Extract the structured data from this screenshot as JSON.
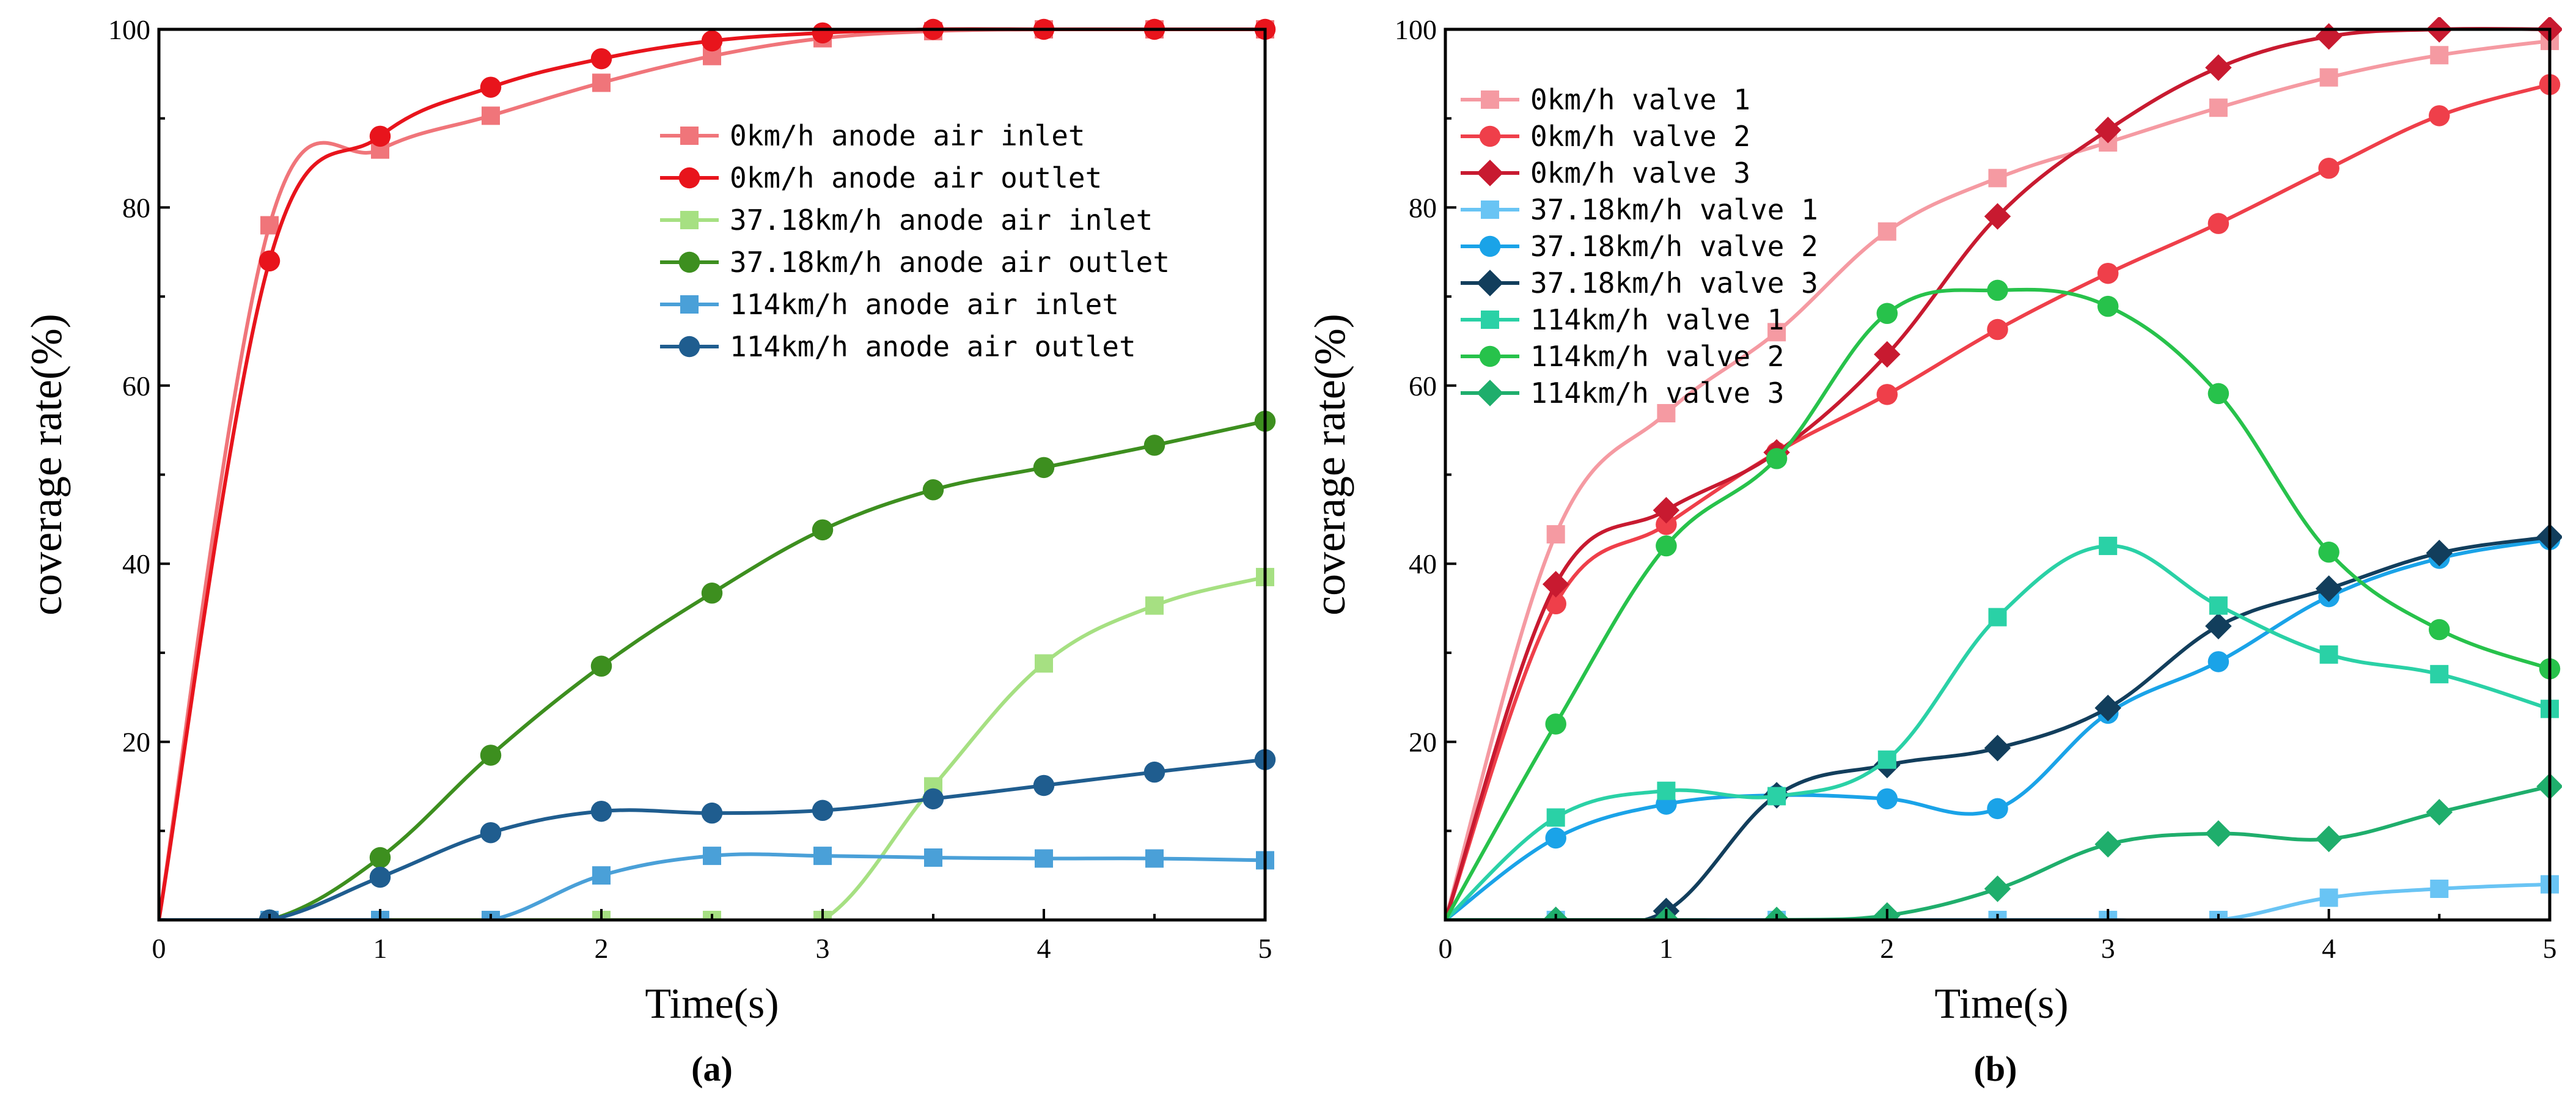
{
  "chart_data": [
    {
      "type": "line",
      "panel_label": "(a)",
      "xlabel": "Time(s)",
      "ylabel": "coverage rate(%)",
      "xlim": [
        0,
        5
      ],
      "ylim": [
        0,
        100
      ],
      "xticks": [
        "0",
        "1",
        "2",
        "3",
        "4",
        "5"
      ],
      "yticks": [
        "20",
        "40",
        "60",
        "80",
        "100"
      ],
      "legend_position": "top-right",
      "series": [
        {
          "name": "0km/h anode air inlet",
          "color": "#f0757a",
          "marker": "square",
          "x": [
            0,
            0.5,
            1,
            1.5,
            2,
            2.5,
            3,
            3.5,
            4,
            4.5,
            5
          ],
          "y": [
            0,
            78,
            86.5,
            90.3,
            94,
            97,
            99,
            99.8,
            100,
            100,
            100
          ]
        },
        {
          "name": "0km/h anode air outlet",
          "color": "#e8141c",
          "marker": "circle",
          "x": [
            0,
            0.5,
            1,
            1.5,
            2,
            2.5,
            3,
            3.5,
            4,
            4.5,
            5
          ],
          "y": [
            0,
            74,
            88,
            93.5,
            96.7,
            98.7,
            99.6,
            100,
            100,
            100,
            100
          ]
        },
        {
          "name": "37.18km/h anode air inlet",
          "color": "#a6e082",
          "marker": "square",
          "x": [
            0,
            0.5,
            1,
            1.5,
            2,
            2.5,
            3,
            3.5,
            4,
            4.5,
            5
          ],
          "y": [
            0,
            0,
            0,
            0,
            0,
            0,
            0,
            15,
            28.8,
            35.3,
            38.5
          ]
        },
        {
          "name": "37.18km/h anode air outlet",
          "color": "#3d8f1f",
          "marker": "circle",
          "x": [
            0,
            0.5,
            1,
            1.5,
            2,
            2.5,
            3,
            3.5,
            4,
            4.5,
            5
          ],
          "y": [
            0,
            0,
            7,
            18.5,
            28.5,
            36.7,
            43.8,
            48.3,
            50.8,
            53.3,
            56
          ]
        },
        {
          "name": "114km/h anode air inlet",
          "color": "#4aa0d8",
          "marker": "square",
          "x": [
            0,
            0.5,
            1,
            1.5,
            2,
            2.5,
            3,
            3.5,
            4,
            4.5,
            5
          ],
          "y": [
            0,
            0,
            0,
            0,
            5,
            7.2,
            7.2,
            7,
            6.9,
            6.9,
            6.7
          ]
        },
        {
          "name": "114km/h anode air outlet",
          "color": "#1f5d8f",
          "marker": "circle",
          "x": [
            0,
            0.5,
            1,
            1.5,
            2,
            2.5,
            3,
            3.5,
            4,
            4.5,
            5
          ],
          "y": [
            0,
            0,
            4.8,
            9.8,
            12.2,
            12,
            12.3,
            13.6,
            15.1,
            16.6,
            18
          ]
        }
      ]
    },
    {
      "type": "line",
      "panel_label": "(b)",
      "xlabel": "Time(s)",
      "ylabel": "coverage rate(%)",
      "xlim": [
        0,
        5
      ],
      "ylim": [
        0,
        100
      ],
      "xticks": [
        "0",
        "1",
        "2",
        "3",
        "4",
        "5"
      ],
      "yticks": [
        "20",
        "40",
        "60",
        "80",
        "100"
      ],
      "legend_position": "top-left",
      "series": [
        {
          "name": "0km/h valve 1",
          "color": "#f59aa2",
          "marker": "square",
          "x": [
            0,
            0.5,
            1,
            1.5,
            2,
            2.5,
            3,
            3.5,
            4,
            4.5,
            5
          ],
          "y": [
            0,
            43.3,
            56.9,
            66,
            77.3,
            83.3,
            87.3,
            91.2,
            94.6,
            97.1,
            98.7
          ]
        },
        {
          "name": "0km/h valve 2",
          "color": "#ef3f4a",
          "marker": "circle",
          "x": [
            0,
            0.5,
            1,
            1.5,
            2,
            2.5,
            3,
            3.5,
            4,
            4.5,
            5
          ],
          "y": [
            0,
            35.5,
            44.4,
            52.5,
            59,
            66.3,
            72.6,
            78.2,
            84.4,
            90.3,
            93.8
          ]
        },
        {
          "name": "0km/h valve 3",
          "color": "#c81a30",
          "marker": "diamond",
          "x": [
            0,
            0.5,
            1,
            1.5,
            2,
            2.5,
            3,
            3.5,
            4,
            4.5,
            5
          ],
          "y": [
            0,
            37.7,
            46,
            52.5,
            63.5,
            79,
            88.7,
            95.7,
            99.2,
            100,
            100
          ]
        },
        {
          "name": "37.18km/h valve 1",
          "color": "#69c4f4",
          "marker": "square",
          "x": [
            0,
            0.5,
            1,
            1.5,
            2,
            2.5,
            3,
            3.5,
            4,
            4.5,
            5
          ],
          "y": [
            0,
            0,
            0,
            0,
            0,
            0,
            0,
            0,
            2.5,
            3.5,
            4
          ]
        },
        {
          "name": "37.18km/h valve 2",
          "color": "#1aa3e8",
          "marker": "circle",
          "x": [
            0,
            0.5,
            1,
            1.5,
            2,
            2.5,
            3,
            3.5,
            4,
            4.5,
            5
          ],
          "y": [
            0,
            9.2,
            13,
            14,
            13.6,
            12.5,
            23.2,
            29,
            36.3,
            40.6,
            42.7
          ]
        },
        {
          "name": "37.18km/h valve 3",
          "color": "#123e5c",
          "marker": "diamond",
          "x": [
            0,
            0.5,
            1,
            1.5,
            2,
            2.5,
            3,
            3.5,
            4,
            4.5,
            5
          ],
          "y": [
            0,
            0,
            1,
            14,
            17.4,
            19.3,
            23.8,
            33,
            37.2,
            41.2,
            43
          ]
        },
        {
          "name": "114km/h valve 1",
          "color": "#2ad1a6",
          "marker": "square",
          "x": [
            0,
            0.5,
            1,
            1.5,
            2,
            2.5,
            3,
            3.5,
            4,
            4.5,
            5
          ],
          "y": [
            0,
            11.5,
            14.5,
            13.9,
            18,
            34,
            42,
            35.3,
            29.8,
            27.6,
            23.7
          ]
        },
        {
          "name": "114km/h valve 2",
          "color": "#27c24b",
          "marker": "circle",
          "x": [
            0,
            0.5,
            1,
            1.5,
            2,
            2.5,
            3,
            3.5,
            4,
            4.5,
            5
          ],
          "y": [
            0,
            22,
            42,
            51.8,
            68.1,
            70.7,
            68.9,
            59.1,
            41.3,
            32.6,
            28.2
          ]
        },
        {
          "name": "114km/h valve 3",
          "color": "#1fae6c",
          "marker": "diamond",
          "x": [
            0,
            0.5,
            1,
            1.5,
            2,
            2.5,
            3,
            3.5,
            4,
            4.5,
            5
          ],
          "y": [
            0,
            0,
            0,
            0,
            0.5,
            3.5,
            8.5,
            9.7,
            9.1,
            12.1,
            15
          ]
        }
      ]
    }
  ]
}
